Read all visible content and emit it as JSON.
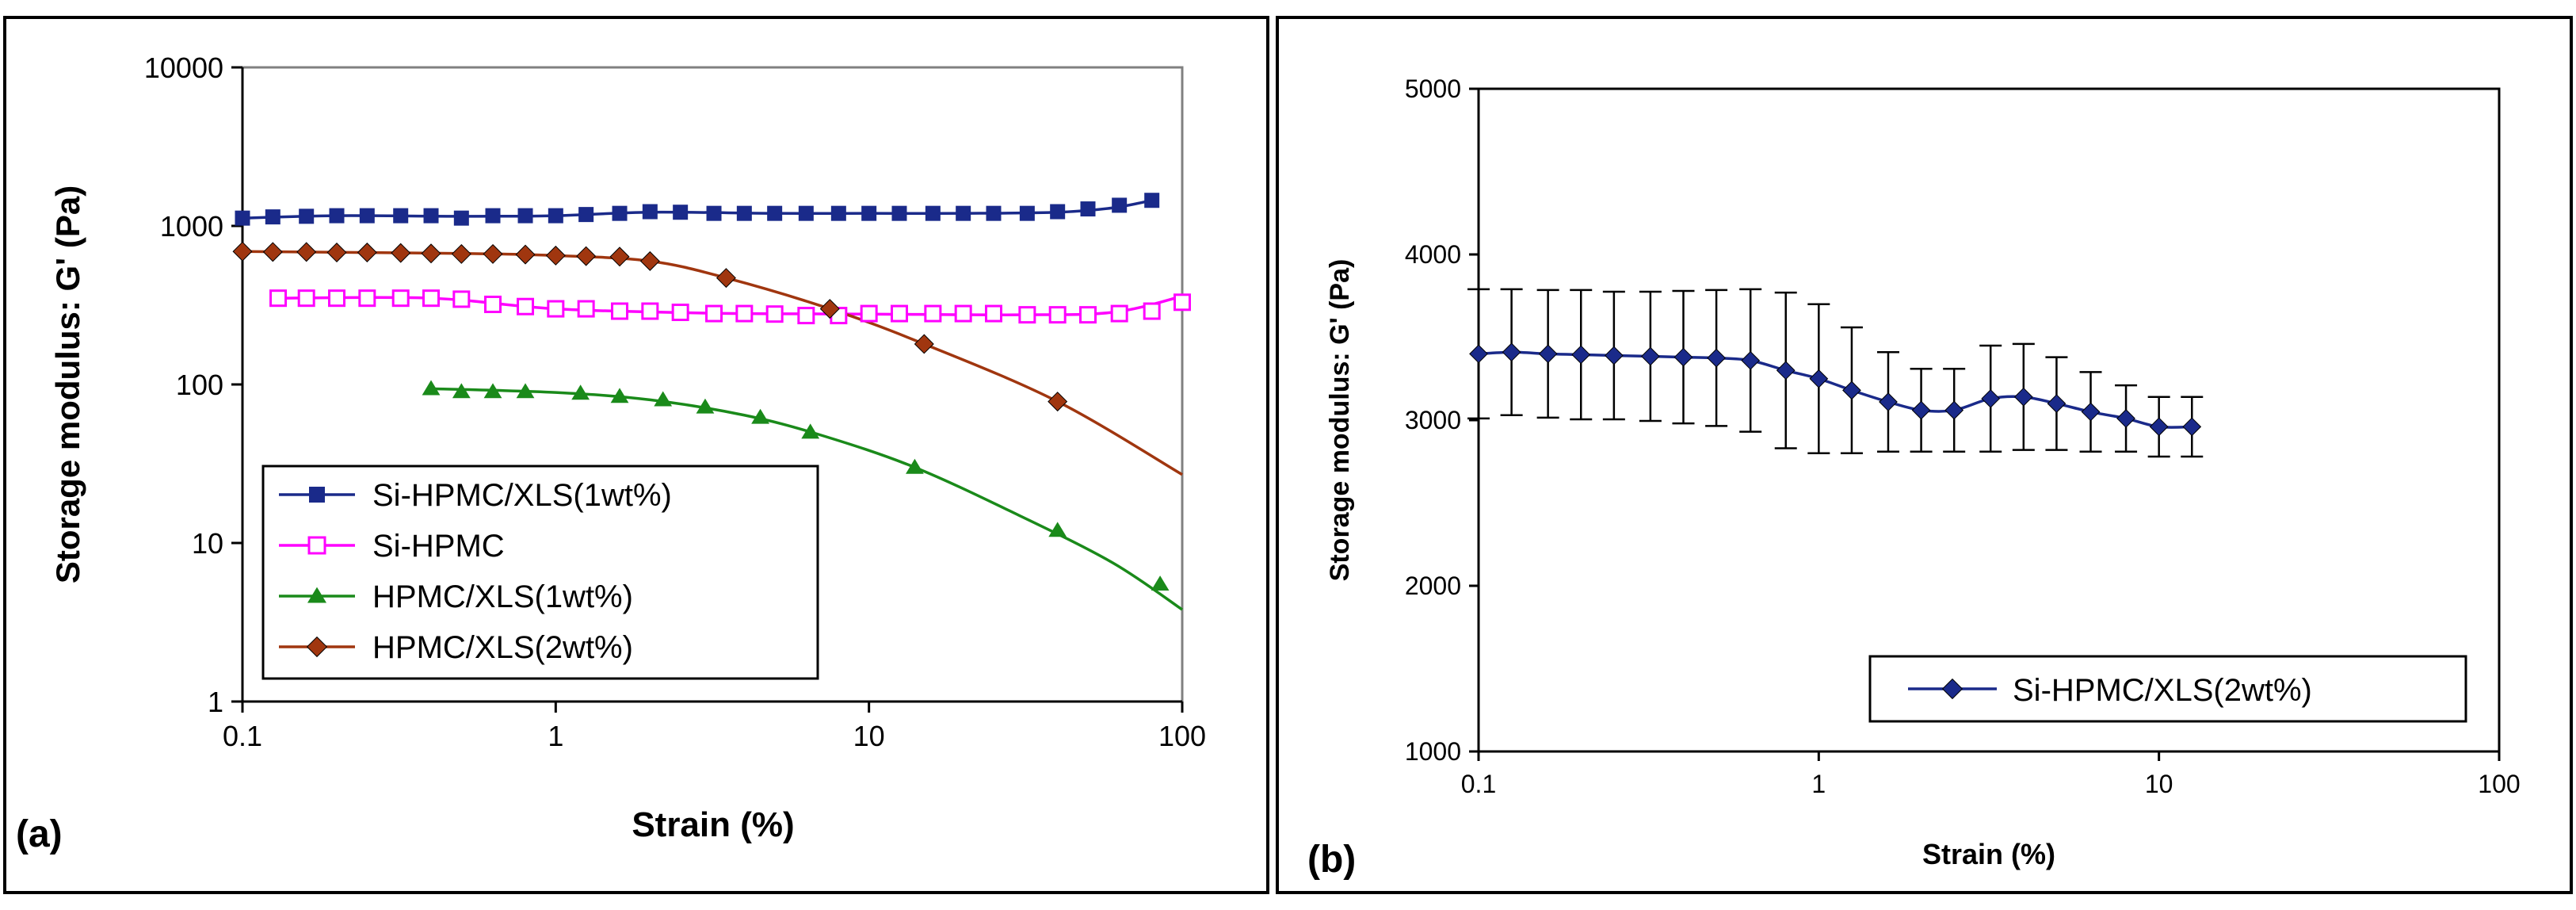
{
  "chart_data": [
    {
      "panel_label": "(a)",
      "type": "line",
      "xlabel": "Strain (%)",
      "ylabel": "Storage modulus: G' (Pa)",
      "xscale": "log",
      "yscale": "log",
      "xlim": [
        0.1,
        100
      ],
      "ylim": [
        1,
        10000
      ],
      "x_ticks": [
        0.1,
        1,
        10,
        100
      ],
      "x_tick_labels": [
        "0.1",
        "1",
        "10",
        "100"
      ],
      "y_ticks": [
        1,
        10,
        100,
        1000,
        10000
      ],
      "y_tick_labels": [
        "1",
        "10",
        "100",
        "1000",
        "10000"
      ],
      "legend_position": "bottom-left",
      "series": [
        {
          "name": "Si-HPMC/XLS(1wt%)",
          "color": "#1a2a8a",
          "marker": "square-filled",
          "x": [
            0.1,
            0.125,
            0.16,
            0.2,
            0.25,
            0.32,
            0.4,
            0.5,
            0.63,
            0.8,
            1.0,
            1.25,
            1.6,
            2.0,
            2.5,
            3.2,
            4.0,
            5.0,
            6.3,
            8.0,
            10,
            12.5,
            16,
            20,
            25,
            32,
            40,
            50,
            63,
            80
          ],
          "y": [
            1120,
            1140,
            1150,
            1160,
            1160,
            1160,
            1160,
            1120,
            1160,
            1160,
            1160,
            1180,
            1200,
            1230,
            1220,
            1200,
            1200,
            1200,
            1200,
            1200,
            1200,
            1200,
            1200,
            1200,
            1200,
            1200,
            1230,
            1280,
            1350,
            1450
          ],
          "curve_x": [
            0.1,
            0.2,
            0.5,
            1,
            2,
            5,
            10,
            20,
            40,
            60,
            80
          ],
          "curve_y": [
            1120,
            1160,
            1150,
            1160,
            1220,
            1200,
            1200,
            1200,
            1220,
            1300,
            1450
          ]
        },
        {
          "name": "Si-HPMC",
          "color": "#ff00ff",
          "marker": "square-open",
          "x": [
            0.13,
            0.16,
            0.2,
            0.25,
            0.32,
            0.4,
            0.5,
            0.63,
            0.8,
            1.0,
            1.25,
            1.6,
            2.0,
            2.5,
            3.2,
            4.0,
            5.0,
            6.3,
            8.0,
            10,
            12.5,
            16,
            20,
            25,
            32,
            40,
            50,
            63,
            80,
            100
          ],
          "y": [
            350,
            350,
            350,
            350,
            350,
            350,
            345,
            320,
            310,
            300,
            300,
            290,
            290,
            285,
            280,
            280,
            278,
            272,
            272,
            280,
            280,
            280,
            280,
            280,
            275,
            275,
            275,
            280,
            290,
            330
          ],
          "curve_x": [
            0.13,
            0.4,
            1,
            3,
            10,
            30,
            60,
            100
          ],
          "curve_y": [
            350,
            350,
            300,
            282,
            278,
            275,
            285,
            360
          ]
        },
        {
          "name": "HPMC/XLS(1wt%)",
          "color": "#1a8a1a",
          "marker": "triangle-filled",
          "x": [
            0.4,
            0.5,
            0.63,
            0.8,
            1.2,
            1.6,
            2.2,
            3.0,
            4.5,
            6.5,
            14,
            40,
            85
          ],
          "y": [
            94,
            90,
            90,
            90,
            88,
            84,
            80,
            72,
            62,
            50,
            30,
            12,
            5.5
          ],
          "curve_x": [
            0.4,
            1,
            2,
            4,
            7,
            14,
            30,
            60,
            100
          ],
          "curve_y": [
            94,
            89,
            80,
            64,
            48,
            30,
            15,
            7.5,
            3.8
          ]
        },
        {
          "name": "HPMC/XLS(2wt%)",
          "color": "#a0360f",
          "marker": "diamond-filled",
          "x": [
            0.1,
            0.125,
            0.16,
            0.2,
            0.25,
            0.32,
            0.4,
            0.5,
            0.63,
            0.8,
            1.0,
            1.25,
            1.6,
            2.0,
            3.5,
            7.5,
            15,
            40
          ],
          "y": [
            690,
            685,
            685,
            680,
            680,
            675,
            670,
            665,
            665,
            660,
            650,
            645,
            640,
            600,
            470,
            300,
            180,
            78
          ],
          "curve_x": [
            0.1,
            0.5,
            1,
            2,
            3.5,
            7.5,
            15,
            40,
            100
          ],
          "curve_y": [
            690,
            670,
            650,
            600,
            470,
            300,
            180,
            78,
            27
          ]
        }
      ]
    },
    {
      "panel_label": "(b)",
      "type": "line",
      "xlabel": "Strain (%)",
      "ylabel": "Storage modulus: G' (Pa)",
      "xscale": "log",
      "yscale": "linear",
      "xlim": [
        0.1,
        100
      ],
      "ylim": [
        1000,
        5000
      ],
      "x_ticks": [
        0.1,
        1,
        10,
        100
      ],
      "x_tick_labels": [
        "0.1",
        "1",
        "10",
        "100"
      ],
      "y_ticks": [
        1000,
        2000,
        3000,
        4000,
        5000
      ],
      "y_tick_labels": [
        "1000",
        "2000",
        "3000",
        "4000",
        "5000"
      ],
      "legend_position": "bottom-right",
      "series": [
        {
          "name": "Si-HPMC/XLS(2wt%)",
          "color": "#1a2a8a",
          "marker": "diamond-filled",
          "x": [
            0.1,
            0.125,
            0.16,
            0.2,
            0.25,
            0.32,
            0.4,
            0.5,
            0.63,
            0.8,
            1.0,
            1.25,
            1.6,
            2.0,
            2.5,
            3.2,
            4.0,
            5.0,
            6.3,
            8.0,
            10,
            12.5
          ],
          "y": [
            3400,
            3410,
            3400,
            3395,
            3390,
            3385,
            3380,
            3375,
            3360,
            3300,
            3250,
            3180,
            3110,
            3060,
            3060,
            3130,
            3140,
            3100,
            3050,
            3010,
            2960,
            2960
          ],
          "err": [
            390,
            380,
            385,
            390,
            385,
            390,
            400,
            410,
            430,
            470,
            450,
            380,
            300,
            250,
            250,
            320,
            320,
            280,
            240,
            200,
            180,
            180
          ]
        }
      ]
    }
  ]
}
